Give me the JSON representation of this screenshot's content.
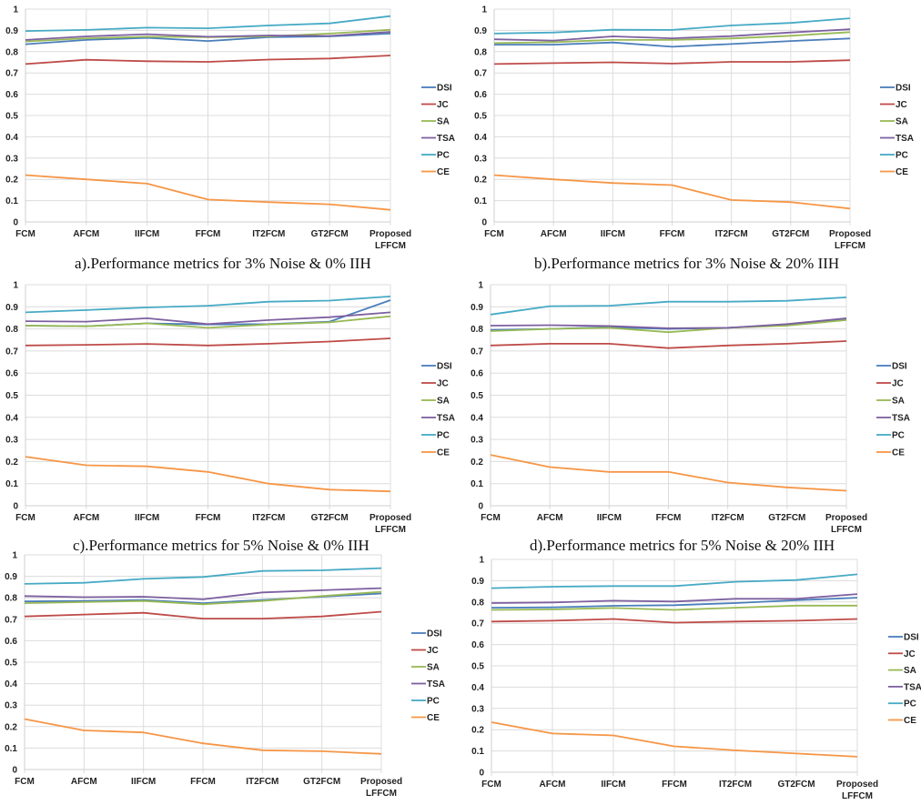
{
  "chart_data": [
    {
      "id": "a",
      "type": "line",
      "title": "a).Performance  metrics for 3% Noise & 0% IIH",
      "xlabel": "",
      "ylabel": "",
      "categories": [
        "FCM",
        "AFCM",
        "IIFCM",
        "FFCM",
        "IT2FCM",
        "GT2FCM",
        "Proposed LFFCM"
      ],
      "ylim": [
        0,
        1
      ],
      "yticks": [
        "0",
        "0.1",
        "0.2",
        "0.3",
        "0.4",
        "0.5",
        "0.6",
        "0.7",
        "0.8",
        "0.9",
        "1"
      ],
      "grid": true,
      "legend": "right",
      "series": [
        {
          "name": "DSI",
          "color": "#4a7ebb",
          "values": [
            0.835,
            0.855,
            0.865,
            0.85,
            0.868,
            0.872,
            0.885
          ]
        },
        {
          "name": "JC",
          "color": "#be4b48",
          "values": [
            0.742,
            0.762,
            0.755,
            0.752,
            0.763,
            0.768,
            0.782
          ]
        },
        {
          "name": "SA",
          "color": "#98b954",
          "values": [
            0.848,
            0.863,
            0.87,
            0.868,
            0.872,
            0.885,
            0.903
          ]
        },
        {
          "name": "TSA",
          "color": "#7d60a0",
          "values": [
            0.855,
            0.872,
            0.882,
            0.87,
            0.876,
            0.874,
            0.893
          ]
        },
        {
          "name": "PC",
          "color": "#46aac5",
          "values": [
            0.897,
            0.902,
            0.913,
            0.91,
            0.923,
            0.933,
            0.967
          ]
        },
        {
          "name": "CE",
          "color": "#f69646",
          "values": [
            0.22,
            0.2,
            0.18,
            0.105,
            0.093,
            0.083,
            0.057
          ]
        }
      ]
    },
    {
      "id": "b",
      "type": "line",
      "title": "b).Performance  metrics for 3% Noise & 20% IIH",
      "xlabel": "",
      "ylabel": "",
      "categories": [
        "FCM",
        "AFCM",
        "IIFCM",
        "FFCM",
        "IT2FCM",
        "GT2FCM",
        "Proposed LFFCM"
      ],
      "ylim": [
        0,
        1
      ],
      "yticks": [
        "0",
        "0.1",
        "0.2",
        "0.3",
        "0.4",
        "0.5",
        "0.6",
        "0.7",
        "0.8",
        "0.9",
        "1"
      ],
      "grid": true,
      "legend": "right",
      "series": [
        {
          "name": "DSI",
          "color": "#4a7ebb",
          "values": [
            0.833,
            0.833,
            0.843,
            0.823,
            0.836,
            0.85,
            0.862
          ]
        },
        {
          "name": "JC",
          "color": "#be4b48",
          "values": [
            0.742,
            0.746,
            0.75,
            0.744,
            0.752,
            0.752,
            0.76
          ]
        },
        {
          "name": "SA",
          "color": "#98b954",
          "values": [
            0.84,
            0.845,
            0.855,
            0.855,
            0.862,
            0.875,
            0.892
          ]
        },
        {
          "name": "TSA",
          "color": "#7d60a0",
          "values": [
            0.858,
            0.852,
            0.872,
            0.863,
            0.873,
            0.89,
            0.905
          ]
        },
        {
          "name": "PC",
          "color": "#46aac5",
          "values": [
            0.885,
            0.89,
            0.903,
            0.902,
            0.923,
            0.935,
            0.957
          ]
        },
        {
          "name": "CE",
          "color": "#f69646",
          "values": [
            0.22,
            0.2,
            0.183,
            0.173,
            0.103,
            0.093,
            0.063
          ]
        }
      ]
    },
    {
      "id": "c",
      "type": "line",
      "title": "c).Performance  metrics for 5% Noise & 0% IIH",
      "xlabel": "",
      "ylabel": "",
      "categories": [
        "FCM",
        "AFCM",
        "IIFCM",
        "FFCM",
        "IT2FCM",
        "GT2FCM",
        "Proposed LFFCM"
      ],
      "ylim": [
        0,
        1
      ],
      "yticks": [
        "0",
        "0.1",
        "0.2",
        "0.3",
        "0.4",
        "0.5",
        "0.6",
        "0.7",
        "0.8",
        "0.9",
        "1"
      ],
      "grid": true,
      "legend": "right",
      "series": [
        {
          "name": "DSI",
          "color": "#4a7ebb",
          "values": [
            0.815,
            0.812,
            0.825,
            0.82,
            0.822,
            0.833,
            0.93
          ]
        },
        {
          "name": "JC",
          "color": "#be4b48",
          "values": [
            0.725,
            0.728,
            0.732,
            0.725,
            0.733,
            0.743,
            0.757
          ]
        },
        {
          "name": "SA",
          "color": "#98b954",
          "values": [
            0.815,
            0.812,
            0.825,
            0.805,
            0.82,
            0.83,
            0.857
          ]
        },
        {
          "name": "TSA",
          "color": "#7d60a0",
          "values": [
            0.835,
            0.833,
            0.848,
            0.822,
            0.84,
            0.853,
            0.875
          ]
        },
        {
          "name": "PC",
          "color": "#46aac5",
          "values": [
            0.875,
            0.885,
            0.897,
            0.905,
            0.923,
            0.928,
            0.947
          ]
        },
        {
          "name": "CE",
          "color": "#f69646",
          "values": [
            0.222,
            0.183,
            0.178,
            0.153,
            0.1,
            0.073,
            0.065
          ]
        }
      ]
    },
    {
      "id": "d",
      "type": "line",
      "title": "d).Performance  metrics for 5% Noise & 20% IIH",
      "xlabel": "",
      "ylabel": "",
      "categories": [
        "FCM",
        "AFCM",
        "IIFCM",
        "FFCM",
        "IT2FCM",
        "GT2FCM",
        "Proposed LFFCM"
      ],
      "ylim": [
        0,
        1
      ],
      "yticks": [
        "0",
        "0.1",
        "0.2",
        "0.3",
        "0.4",
        "0.5",
        "0.6",
        "0.7",
        "0.8",
        "0.9",
        "1"
      ],
      "grid": true,
      "legend": "right",
      "series": [
        {
          "name": "DSI",
          "color": "#4a7ebb",
          "values": [
            0.795,
            0.8,
            0.808,
            0.8,
            0.805,
            0.818,
            0.843
          ]
        },
        {
          "name": "JC",
          "color": "#be4b48",
          "values": [
            0.725,
            0.733,
            0.733,
            0.713,
            0.725,
            0.733,
            0.745
          ]
        },
        {
          "name": "SA",
          "color": "#98b954",
          "values": [
            0.79,
            0.8,
            0.805,
            0.785,
            0.805,
            0.815,
            0.84
          ]
        },
        {
          "name": "TSA",
          "color": "#7d60a0",
          "values": [
            0.815,
            0.817,
            0.813,
            0.803,
            0.805,
            0.822,
            0.848
          ]
        },
        {
          "name": "PC",
          "color": "#46aac5",
          "values": [
            0.865,
            0.903,
            0.905,
            0.923,
            0.923,
            0.927,
            0.943
          ]
        },
        {
          "name": "CE",
          "color": "#f69646",
          "values": [
            0.23,
            0.175,
            0.153,
            0.153,
            0.105,
            0.083,
            0.068
          ]
        }
      ]
    },
    {
      "id": "e",
      "type": "line",
      "title": "",
      "xlabel": "",
      "ylabel": "",
      "categories": [
        "FCM",
        "AFCM",
        "IIFCM",
        "FFCM",
        "IT2FCM",
        "GT2FCM",
        "Proposed LFFCM"
      ],
      "ylim": [
        0,
        1
      ],
      "yticks": [
        "0",
        "0.1",
        "0.2",
        "0.3",
        "0.4",
        "0.5",
        "0.6",
        "0.7",
        "0.8",
        "0.9",
        "1"
      ],
      "grid": true,
      "legend": "right",
      "series": [
        {
          "name": "DSI",
          "color": "#4a7ebb",
          "values": [
            0.783,
            0.785,
            0.79,
            0.775,
            0.79,
            0.805,
            0.82
          ]
        },
        {
          "name": "JC",
          "color": "#be4b48",
          "values": [
            0.713,
            0.722,
            0.73,
            0.703,
            0.703,
            0.713,
            0.735
          ]
        },
        {
          "name": "SA",
          "color": "#98b954",
          "values": [
            0.775,
            0.78,
            0.785,
            0.77,
            0.785,
            0.808,
            0.828
          ]
        },
        {
          "name": "TSA",
          "color": "#7d60a0",
          "values": [
            0.808,
            0.803,
            0.805,
            0.793,
            0.825,
            0.835,
            0.845
          ]
        },
        {
          "name": "PC",
          "color": "#46aac5",
          "values": [
            0.865,
            0.87,
            0.888,
            0.897,
            0.925,
            0.928,
            0.938
          ]
        },
        {
          "name": "CE",
          "color": "#f69646",
          "values": [
            0.235,
            0.182,
            0.173,
            0.122,
            0.09,
            0.085,
            0.073
          ]
        }
      ]
    },
    {
      "id": "f",
      "type": "line",
      "title": "",
      "xlabel": "",
      "ylabel": "",
      "categories": [
        "FCM",
        "AFCM",
        "IIFCM",
        "FFCM",
        "IT2FCM",
        "GT2FCM",
        "Proposed LFFCM"
      ],
      "ylim": [
        0,
        1
      ],
      "yticks": [
        "0",
        "0.1",
        "0.2",
        "0.3",
        "0.4",
        "0.5",
        "0.6",
        "0.7",
        "0.8",
        "0.9",
        "1"
      ],
      "grid": true,
      "legend": "right",
      "series": [
        {
          "name": "DSI",
          "color": "#4a7ebb",
          "values": [
            0.773,
            0.775,
            0.782,
            0.785,
            0.795,
            0.808,
            0.82
          ]
        },
        {
          "name": "JC",
          "color": "#be4b48",
          "values": [
            0.708,
            0.712,
            0.72,
            0.703,
            0.708,
            0.712,
            0.72
          ]
        },
        {
          "name": "SA",
          "color": "#98b954",
          "values": [
            0.763,
            0.765,
            0.772,
            0.763,
            0.773,
            0.783,
            0.783
          ]
        },
        {
          "name": "TSA",
          "color": "#7d60a0",
          "values": [
            0.795,
            0.798,
            0.806,
            0.802,
            0.815,
            0.815,
            0.837
          ]
        },
        {
          "name": "PC",
          "color": "#46aac5",
          "values": [
            0.865,
            0.872,
            0.875,
            0.875,
            0.895,
            0.903,
            0.93
          ]
        },
        {
          "name": "CE",
          "color": "#f69646",
          "values": [
            0.235,
            0.182,
            0.173,
            0.122,
            0.103,
            0.088,
            0.073
          ]
        }
      ]
    }
  ]
}
